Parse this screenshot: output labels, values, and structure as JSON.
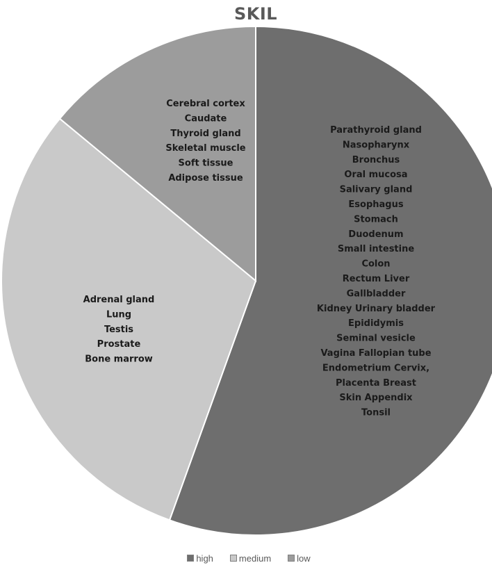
{
  "chart_data": {
    "type": "pie",
    "title": "SKIL",
    "slices": [
      {
        "name": "high",
        "value": 55.5,
        "color": "#6e6e6e",
        "labels": [
          "Parathyroid gland",
          "Nasopharynx",
          "Bronchus",
          "Oral mucosa",
          "Salivary gland",
          "Esophagus",
          "Stomach",
          "Duodenum",
          "Small intestine",
          "Colon",
          "Rectum Liver",
          "Gallbladder",
          "Kidney Urinary bladder",
          "Epididymis",
          "Seminal vesicle",
          "Vagina Fallopian tube",
          "Endometrium Cervix,",
          "Placenta Breast",
          "Skin Appendix",
          "Tonsil"
        ]
      },
      {
        "name": "medium",
        "value": 30.5,
        "color": "#c9c9c9",
        "labels": [
          "Adrenal gland",
          "Lung",
          "Testis",
          "Prostate",
          "Bone marrow"
        ]
      },
      {
        "name": "low",
        "value": 14,
        "color": "#9c9c9c",
        "labels": [
          "Cerebral cortex",
          "Caudate",
          "Thyroid gland",
          "Skeletal muscle",
          "Soft tissue",
          "Adipose tissue"
        ]
      }
    ],
    "legend_position": "bottom"
  }
}
